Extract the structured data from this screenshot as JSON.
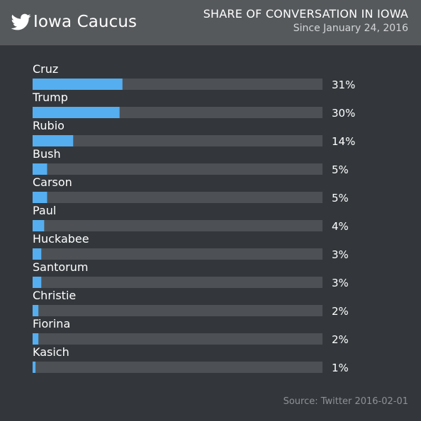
{
  "header": {
    "title": "Iowa Caucus",
    "subtitle": "SHARE OF CONVERSATION IN IOWA",
    "date_range": "Since January 24, 2016"
  },
  "source": "Source: Twitter 2016-02-01",
  "colors": {
    "background": "#33373b",
    "header": "#56595c",
    "bar": "#55aef0",
    "track": "#4d5155"
  },
  "chart_data": {
    "type": "bar",
    "orientation": "horizontal",
    "categories": [
      "Cruz",
      "Trump",
      "Rubio",
      "Bush",
      "Carson",
      "Paul",
      "Huckabee",
      "Santorum",
      "Christie",
      "Fiorina",
      "Kasich"
    ],
    "values": [
      31,
      30,
      14,
      5,
      5,
      4,
      3,
      3,
      2,
      2,
      1
    ],
    "value_labels": [
      "31%",
      "30%",
      "14%",
      "5%",
      "5%",
      "4%",
      "3%",
      "3%",
      "2%",
      "2%",
      "1%"
    ],
    "xlim": [
      0,
      100
    ],
    "grid": false,
    "legend": "none"
  }
}
